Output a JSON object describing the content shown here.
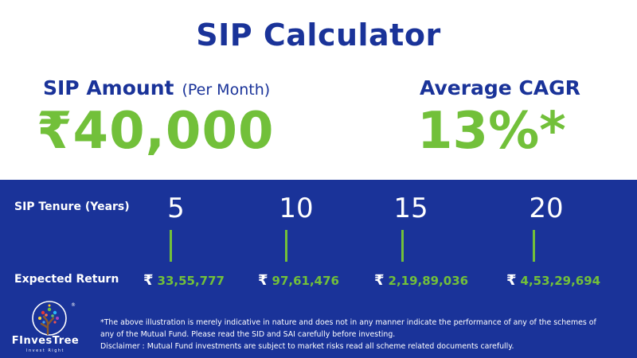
{
  "title": "SIP Calculator",
  "sip_amount": {
    "label": "SIP Amount",
    "sublabel": "(Per Month)",
    "value": "₹40,000"
  },
  "cagr": {
    "label": "Average CAGR",
    "value": "13%*"
  },
  "tenure_label": "SIP Tenure (Years)",
  "return_label": "Expected Return",
  "currency_symbol": "₹",
  "columns": [
    {
      "years": "5",
      "expected_return": "33,55,777"
    },
    {
      "years": "10",
      "expected_return": "97,61,476"
    },
    {
      "years": "15",
      "expected_return": "2,19,89,036"
    },
    {
      "years": "20",
      "expected_return": "4,53,29,694"
    }
  ],
  "logo": {
    "name": "FInvesTree",
    "tagline": "Invest Right",
    "registered": "®"
  },
  "disclaimer": {
    "line1": "*The above illustration is merely indicative in nature and does not in any manner indicate the performance of any of the schemes of",
    "line2": "any of the Mutual Fund. Please read the SID and SAI carefully before investing.",
    "line3": "Disclaimer : Mutual Fund investments are subject to market risks read all scheme related documents carefully."
  },
  "colors": {
    "brand_blue": "#1a3399",
    "accent_green": "#72c03a"
  }
}
